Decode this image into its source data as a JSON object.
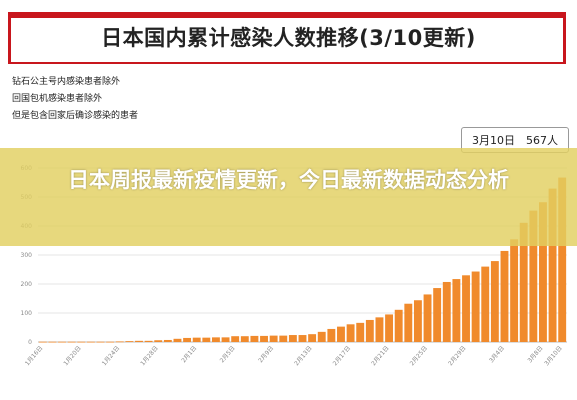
{
  "title": "日本国内累计感染人数推移(3/10更新)",
  "notes": [
    "钻石公主号内感染患者除外",
    "回国包机感染患者除外",
    "但是包含回家后确诊感染的患者"
  ],
  "callout": "3月10日　567人",
  "headline": "日本周报最新疫情更新，今日最新数据动态分析",
  "colors": {
    "bar": "#f08a2c",
    "accent": "#c8161d",
    "overlay": "#e2cf60"
  },
  "chart_data": {
    "type": "bar",
    "ylim": [
      0,
      600
    ],
    "yticks": [
      "0",
      "100",
      "200",
      "300",
      "400",
      "500",
      "600"
    ],
    "categories": [
      "1月16日",
      "1月17日",
      "1月18日",
      "1月19日",
      "1月20日",
      "1月21日",
      "1月22日",
      "1月23日",
      "1月24日",
      "1月25日",
      "1月26日",
      "1月27日",
      "1月28日",
      "1月29日",
      "1月30日",
      "1月31日",
      "2月1日",
      "2月2日",
      "2月3日",
      "2月4日",
      "2月5日",
      "2月6日",
      "2月7日",
      "2月8日",
      "2月9日",
      "2月10日",
      "2月11日",
      "2月12日",
      "2月13日",
      "2月14日",
      "2月15日",
      "2月16日",
      "2月17日",
      "2月18日",
      "2月19日",
      "2月20日",
      "2月21日",
      "2月22日",
      "2月23日",
      "2月24日",
      "2月25日",
      "2月26日",
      "2月27日",
      "2月28日",
      "2月29日",
      "3月1日",
      "3月2日",
      "3月3日",
      "3月4日",
      "3月5日",
      "3月6日",
      "3月7日",
      "3月8日",
      "3月9日",
      "3月10日"
    ],
    "xticklabels": [
      "1月16日",
      "1月20日",
      "1月24日",
      "1月28日",
      "2月1日",
      "2月5日",
      "2月9日",
      "2月13日",
      "2月17日",
      "2月21日",
      "2月25日",
      "2月29日",
      "3月4日",
      "3月8日",
      "3月10日"
    ],
    "values": [
      1,
      1,
      1,
      1,
      1,
      1,
      1,
      1,
      2,
      3,
      4,
      4,
      6,
      7,
      11,
      14,
      15,
      15,
      16,
      16,
      20,
      20,
      21,
      21,
      22,
      22,
      24,
      24,
      27,
      35,
      45,
      53,
      61,
      66,
      76,
      85,
      95,
      111,
      132,
      144,
      164,
      186,
      207,
      217,
      230,
      243,
      260,
      279,
      314,
      354,
      411,
      453,
      482,
      529,
      567
    ]
  }
}
